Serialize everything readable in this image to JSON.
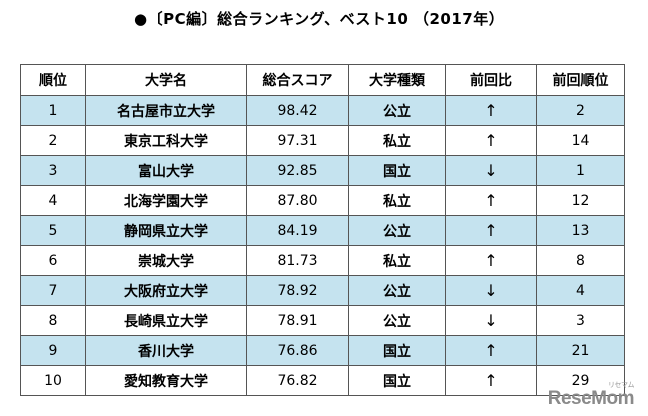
{
  "title": "●〔PC編〕総合ランキング、ベスト10 （2017年）",
  "table": {
    "headers": [
      "順位",
      "大学名",
      "総合スコア",
      "大学種類",
      "前回比",
      "前回順位"
    ],
    "rows": [
      {
        "rank": "1",
        "name": "名古屋市立大学",
        "score": "98.42",
        "type": "公立",
        "change": "↑",
        "prev": "2"
      },
      {
        "rank": "2",
        "name": "東京工科大学",
        "score": "97.31",
        "type": "私立",
        "change": "↑",
        "prev": "14"
      },
      {
        "rank": "3",
        "name": "富山大学",
        "score": "92.85",
        "type": "国立",
        "change": "↓",
        "prev": "1"
      },
      {
        "rank": "4",
        "name": "北海学園大学",
        "score": "87.80",
        "type": "私立",
        "change": "↑",
        "prev": "12"
      },
      {
        "rank": "5",
        "name": "静岡県立大学",
        "score": "84.19",
        "type": "公立",
        "change": "↑",
        "prev": "13"
      },
      {
        "rank": "6",
        "name": "崇城大学",
        "score": "81.73",
        "type": "私立",
        "change": "↑",
        "prev": "8"
      },
      {
        "rank": "7",
        "name": "大阪府立大学",
        "score": "78.92",
        "type": "公立",
        "change": "↓",
        "prev": "4"
      },
      {
        "rank": "8",
        "name": "長崎県立大学",
        "score": "78.91",
        "type": "公立",
        "change": "↓",
        "prev": "3"
      },
      {
        "rank": "9",
        "name": "香川大学",
        "score": "76.86",
        "type": "国立",
        "change": "↑",
        "prev": "21"
      },
      {
        "rank": "10",
        "name": "愛知教育大学",
        "score": "76.82",
        "type": "国立",
        "change": "↑",
        "prev": "29"
      }
    ]
  },
  "logo": {
    "text": "ReseMom",
    "ruby": "リセマム"
  }
}
